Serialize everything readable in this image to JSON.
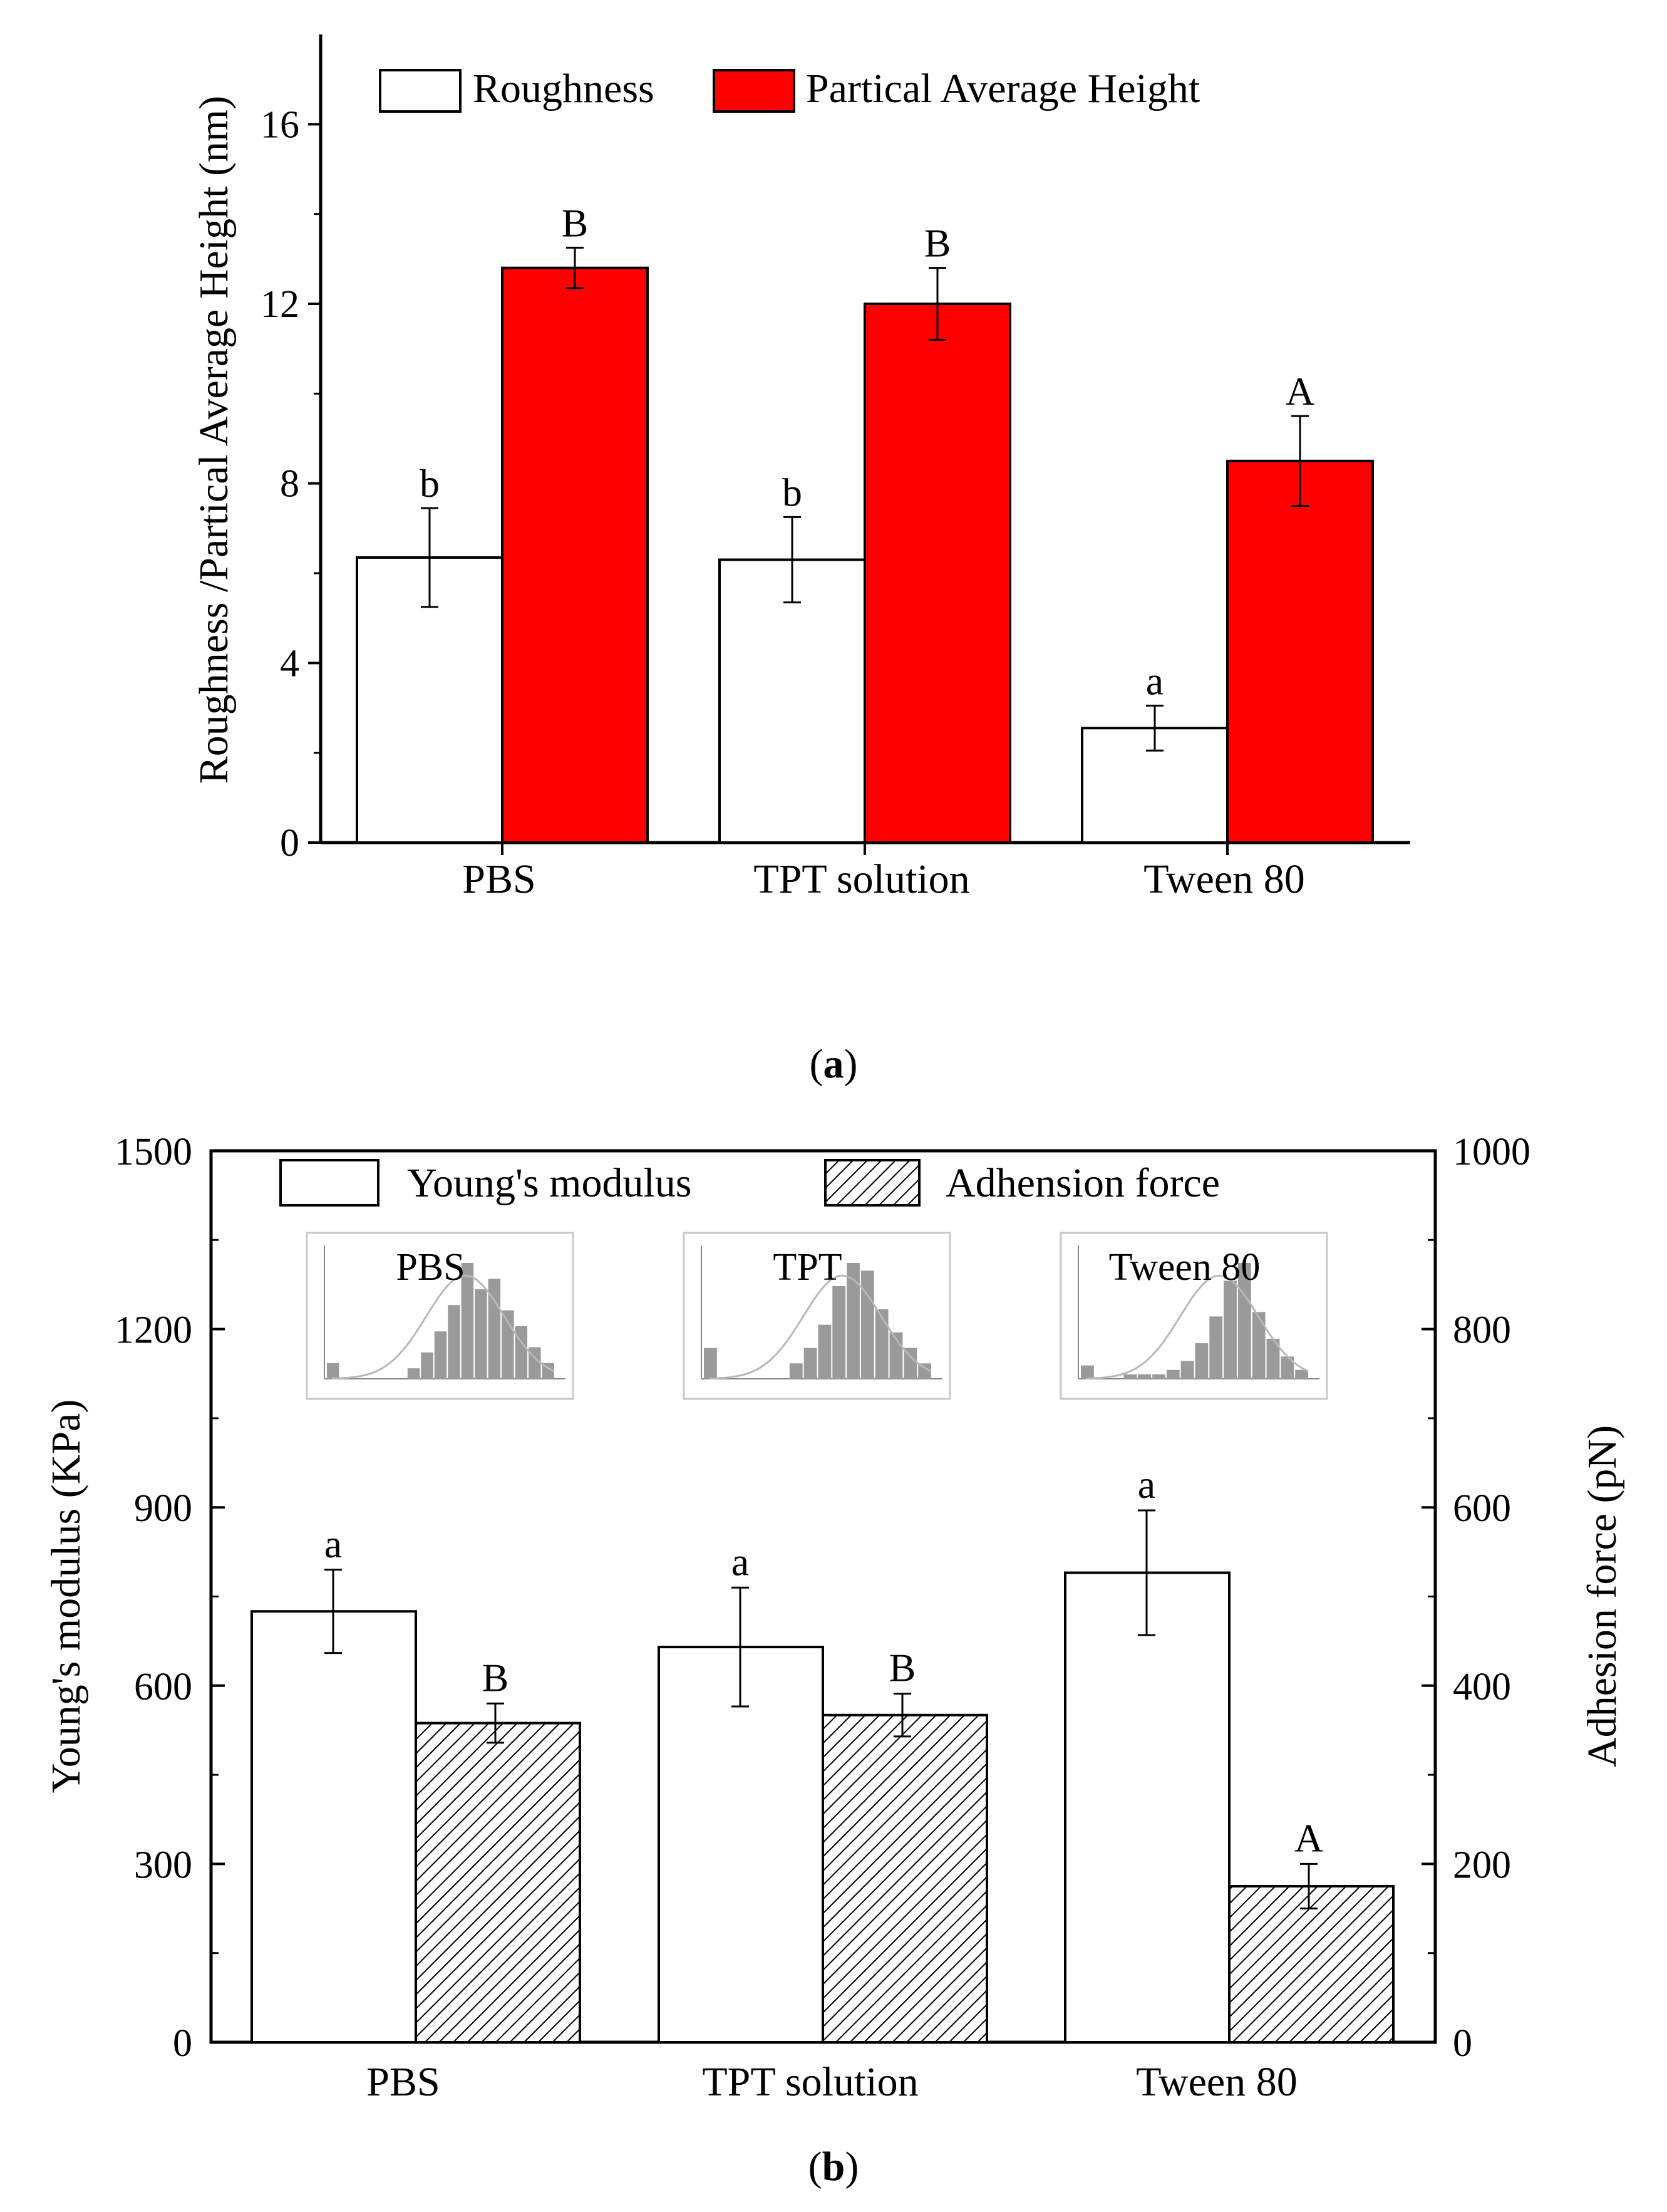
{
  "chart_data": [
    {
      "type": "bar",
      "panel": "a",
      "categories": [
        "PBS",
        "TPT solution",
        "Tween 80"
      ],
      "ylabel": "Roughness /Partical Average Height (nm)",
      "ylim": [
        0,
        18
      ],
      "yticks": [
        "0",
        "4",
        "8",
        "12",
        "16"
      ],
      "series": [
        {
          "name": "Roughness",
          "color": "#ffffff",
          "values": [
            6.35,
            6.3,
            2.55
          ],
          "errors": [
            1.1,
            0.95,
            0.5
          ],
          "labels": [
            "b",
            "b",
            "a"
          ]
        },
        {
          "name": "Partical Average Height",
          "color": "#ff0000",
          "values": [
            12.8,
            12.0,
            8.5
          ],
          "errors": [
            0.45,
            0.8,
            1.0
          ],
          "labels": [
            "B",
            "B",
            "A"
          ]
        }
      ],
      "caption": {
        "open": "(",
        "letter": "a",
        "close": ")"
      }
    },
    {
      "type": "bar",
      "panel": "b",
      "categories": [
        "PBS",
        "TPT solution",
        "Tween 80"
      ],
      "ylabel": "Young's modulus (KPa)",
      "ylabel_right": "Adhesion force (pN)",
      "ylim": [
        0,
        1500
      ],
      "ylim_right": [
        0,
        1000
      ],
      "yticks": [
        "0",
        "300",
        "600",
        "900",
        "1200",
        "1500"
      ],
      "yticks_right": [
        "0",
        "200",
        "400",
        "600",
        "800",
        "1000"
      ],
      "series": [
        {
          "name": "Young's modulus",
          "axis": "left",
          "pattern": "none",
          "values": [
            725,
            665,
            790
          ],
          "errors": [
            70,
            100,
            105
          ],
          "labels": [
            "a",
            "a",
            "a"
          ]
        },
        {
          "name": "Adhension force",
          "axis": "right",
          "pattern": "hatch",
          "values": [
            358,
            367,
            175
          ],
          "errors": [
            22,
            24,
            25
          ],
          "labels": [
            "B",
            "B",
            "A"
          ]
        }
      ],
      "insets": [
        "PBS",
        "TPT",
        "Tween 80"
      ],
      "caption": {
        "open": "(",
        "letter": "b",
        "close": ")"
      }
    }
  ]
}
